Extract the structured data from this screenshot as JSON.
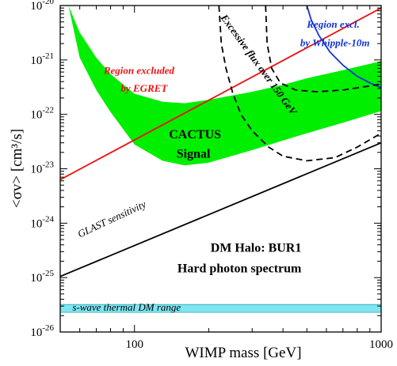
{
  "chart_data": {
    "type": "line",
    "xlabel": "WIMP mass  [GeV]",
    "ylabel": "<σv>  [cm³/s]",
    "xscale": "log",
    "yscale": "log",
    "xlim": [
      50,
      1000
    ],
    "ylim": [
      1e-26,
      1e-20
    ],
    "x_ticks": [
      {
        "value": 100,
        "label": "100"
      },
      {
        "value": 1000,
        "label": "1000"
      }
    ],
    "y_ticks": [
      {
        "value": 1e-26,
        "label": "10^-26"
      },
      {
        "value": 1e-25,
        "label": "10^-25"
      },
      {
        "value": 1e-24,
        "label": "10^-24"
      },
      {
        "value": 1e-23,
        "label": "10^-23"
      },
      {
        "value": 1e-22,
        "label": "10^-22"
      },
      {
        "value": 1e-21,
        "label": "10^-21"
      },
      {
        "value": 1e-20,
        "label": "10^-20"
      }
    ],
    "grid": false,
    "regions": [
      {
        "label": "CACTUS Signal",
        "color": "#00ee00",
        "upper": [
          [
            54,
            1e-20
          ],
          [
            60,
            3.2e-21
          ],
          [
            70,
            1.1e-21
          ],
          [
            80,
            5.5e-22
          ],
          [
            100,
            2.4e-22
          ],
          [
            130,
            1.7e-22
          ],
          [
            160,
            1.6e-22
          ],
          [
            200,
            1.85e-22
          ],
          [
            300,
            2.6e-22
          ],
          [
            400,
            3.5e-22
          ],
          [
            500,
            4.6e-22
          ],
          [
            700,
            6.5e-22
          ],
          [
            1000,
            9.5e-22
          ]
        ],
        "lower": [
          [
            54,
            1e-20
          ],
          [
            60,
            1.1e-21
          ],
          [
            70,
            2.8e-22
          ],
          [
            80,
            1.1e-22
          ],
          [
            100,
            2.8e-23
          ],
          [
            130,
            1.4e-23
          ],
          [
            160,
            1.15e-23
          ],
          [
            200,
            1.3e-23
          ],
          [
            300,
            2.2e-23
          ],
          [
            400,
            3.3e-23
          ],
          [
            500,
            4.5e-23
          ],
          [
            700,
            7e-23
          ],
          [
            1000,
            1.15e-22
          ]
        ]
      },
      {
        "label": "s-wave thermal DM range",
        "color": "#7fe6f0",
        "upper": [
          [
            50,
            3.2e-26
          ],
          [
            1000,
            3.2e-26
          ]
        ],
        "lower": [
          [
            50,
            2.3e-26
          ],
          [
            1000,
            2.3e-26
          ]
        ]
      }
    ],
    "series": [
      {
        "label": "Region excluded by EGRET",
        "color": "#ee1111",
        "dash": false,
        "points": [
          [
            50,
            6.3e-24
          ],
          [
            1000,
            9e-21
          ]
        ]
      },
      {
        "label": "GLAST sensitivity",
        "color": "#000000",
        "dash": false,
        "points": [
          [
            50,
            1.05e-25
          ],
          [
            1000,
            3e-23
          ]
        ]
      },
      {
        "label": "Region excl. by Whipple-10m",
        "color": "#1133dd",
        "dash": false,
        "points": [
          [
            500,
            1e-20
          ],
          [
            520,
            5.5e-21
          ],
          [
            560,
            2.8e-21
          ],
          [
            620,
            1.4e-21
          ],
          [
            700,
            8e-22
          ],
          [
            800,
            5e-22
          ],
          [
            900,
            3.8e-22
          ],
          [
            1000,
            3.1e-22
          ]
        ]
      },
      {
        "label": "Excessive flux over 150 GeV",
        "color": "#000000",
        "dash": true,
        "points": [
          [
            220,
            1e-20
          ],
          [
            225,
            2e-21
          ],
          [
            235,
            7e-22
          ],
          [
            250,
            2.5e-22
          ],
          [
            270,
            1e-22
          ],
          [
            300,
            5e-23
          ],
          [
            350,
            2.5e-23
          ],
          [
            400,
            1.7e-23
          ],
          [
            500,
            1.4e-23
          ],
          [
            650,
            1.6e-23
          ],
          [
            800,
            2.5e-23
          ],
          [
            1000,
            4.5e-23
          ]
        ]
      },
      {
        "label": "Excessive flux over 150 GeV (upper)",
        "color": "#000000",
        "dash": true,
        "points": [
          [
            340,
            1e-20
          ],
          [
            345,
            2e-21
          ],
          [
            360,
            7e-22
          ],
          [
            390,
            3.8e-22
          ],
          [
            450,
            2.8e-22
          ],
          [
            550,
            2.6e-22
          ],
          [
            700,
            2.8e-22
          ],
          [
            850,
            3.2e-22
          ],
          [
            1000,
            3.6e-22
          ]
        ]
      }
    ],
    "annotations": [
      {
        "text": "Region excluded",
        "color": "#ee1111",
        "x": 75,
        "y": 5.5e-22,
        "italic": true,
        "bold": true,
        "size": 13
      },
      {
        "text": "by EGRET",
        "color": "#ee1111",
        "x": 88,
        "y": 2.6e-22,
        "italic": true,
        "bold": true,
        "size": 13
      },
      {
        "text": "Region excl.",
        "color": "#1133dd",
        "x": 500,
        "y": 3.9e-21,
        "italic": true,
        "bold": true,
        "size": 13
      },
      {
        "text": "by Whipple-10m",
        "color": "#1133dd",
        "x": 470,
        "y": 1.8e-21,
        "italic": true,
        "bold": true,
        "size": 13
      },
      {
        "text": "Excessive flux over 150 GeV",
        "color": "#000000",
        "x": 223,
        "y": 6e-21,
        "italic": true,
        "bold": true,
        "size": 13,
        "rotate": 54
      },
      {
        "text": "CACTUS",
        "color": "#000000",
        "x": 138,
        "y": 3.6e-23,
        "italic": false,
        "bold": true,
        "size": 16
      },
      {
        "text": "Signal",
        "color": "#000000",
        "x": 148,
        "y": 1.6e-23,
        "italic": false,
        "bold": true,
        "size": 16
      },
      {
        "text": "GLAST sensitivity",
        "color": "#000000",
        "x": 60,
        "y": 5.4e-25,
        "italic": true,
        "bold": false,
        "size": 13,
        "rotate": -25
      },
      {
        "text": "DM Halo: BUR1",
        "color": "#000000",
        "x": 475,
        "y": 3e-25,
        "italic": false,
        "bold": true,
        "size": 16,
        "anchor": "end"
      },
      {
        "text": "Hard photon spectrum",
        "color": "#000000",
        "x": 475,
        "y": 1.25e-25,
        "italic": false,
        "bold": true,
        "size": 16,
        "anchor": "end"
      },
      {
        "text": "s-wave thermal DM range",
        "color": "#000000",
        "x": 56,
        "y": 2.45e-26,
        "italic": true,
        "bold": false,
        "size": 13
      }
    ]
  }
}
